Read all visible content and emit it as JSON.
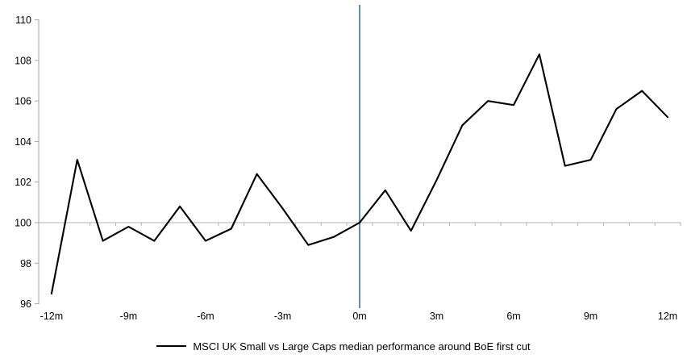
{
  "chart_data": {
    "type": "line",
    "title": "",
    "xlabel": "",
    "ylabel": "",
    "x": [
      -12,
      -11,
      -10,
      -9,
      -8,
      -7,
      -6,
      -5,
      -4,
      -3,
      -2,
      -1,
      0,
      1,
      2,
      3,
      4,
      5,
      6,
      7,
      8,
      9,
      10,
      11,
      12
    ],
    "series": [
      {
        "name": "MSCI UK Small vs Large Caps median performance around BoE first cut",
        "color": "#000000",
        "values": [
          96.5,
          103.1,
          99.1,
          99.8,
          99.1,
          100.8,
          99.1,
          99.7,
          102.4,
          100.7,
          98.9,
          99.3,
          100.0,
          101.6,
          99.6,
          102.1,
          104.8,
          106.0,
          105.8,
          108.3,
          102.8,
          103.1,
          105.6,
          106.5,
          105.2
        ]
      }
    ],
    "x_tick_labels": [
      "-12m",
      "-9m",
      "-6m",
      "-3m",
      "0m",
      "3m",
      "6m",
      "9m",
      "12m"
    ],
    "x_tick_positions": [
      -12,
      -9,
      -6,
      -3,
      0,
      3,
      6,
      9,
      12
    ],
    "y_ticks": [
      96,
      98,
      100,
      102,
      104,
      106,
      108,
      110
    ],
    "ylim": [
      96,
      110
    ],
    "baseline_value": 100,
    "event_line_x": 0,
    "grid": "off",
    "legend": {
      "position": "bottom",
      "label": "MSCI UK Small vs Large Caps median performance around BoE first cut"
    },
    "colors": {
      "series": "#000000",
      "event_line": "#4f81bd",
      "axis": "#a6a6a6",
      "baseline": "#b3b3b3",
      "text": "#000000"
    }
  }
}
